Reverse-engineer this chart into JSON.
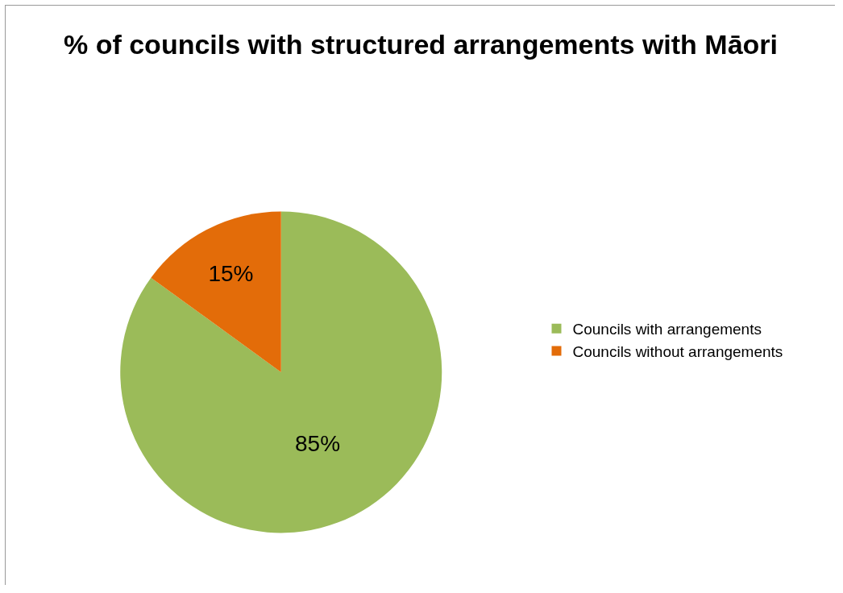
{
  "chart_data": {
    "type": "pie",
    "title": "% of councils with structured arrangements with Māori",
    "categories": [
      "Councils with arrangements",
      "Councils without arrangements"
    ],
    "values": [
      85,
      15
    ],
    "colors": [
      "#9bbb59",
      "#e36c09"
    ],
    "value_labels": [
      "85%",
      "15%"
    ],
    "legend": "right"
  }
}
